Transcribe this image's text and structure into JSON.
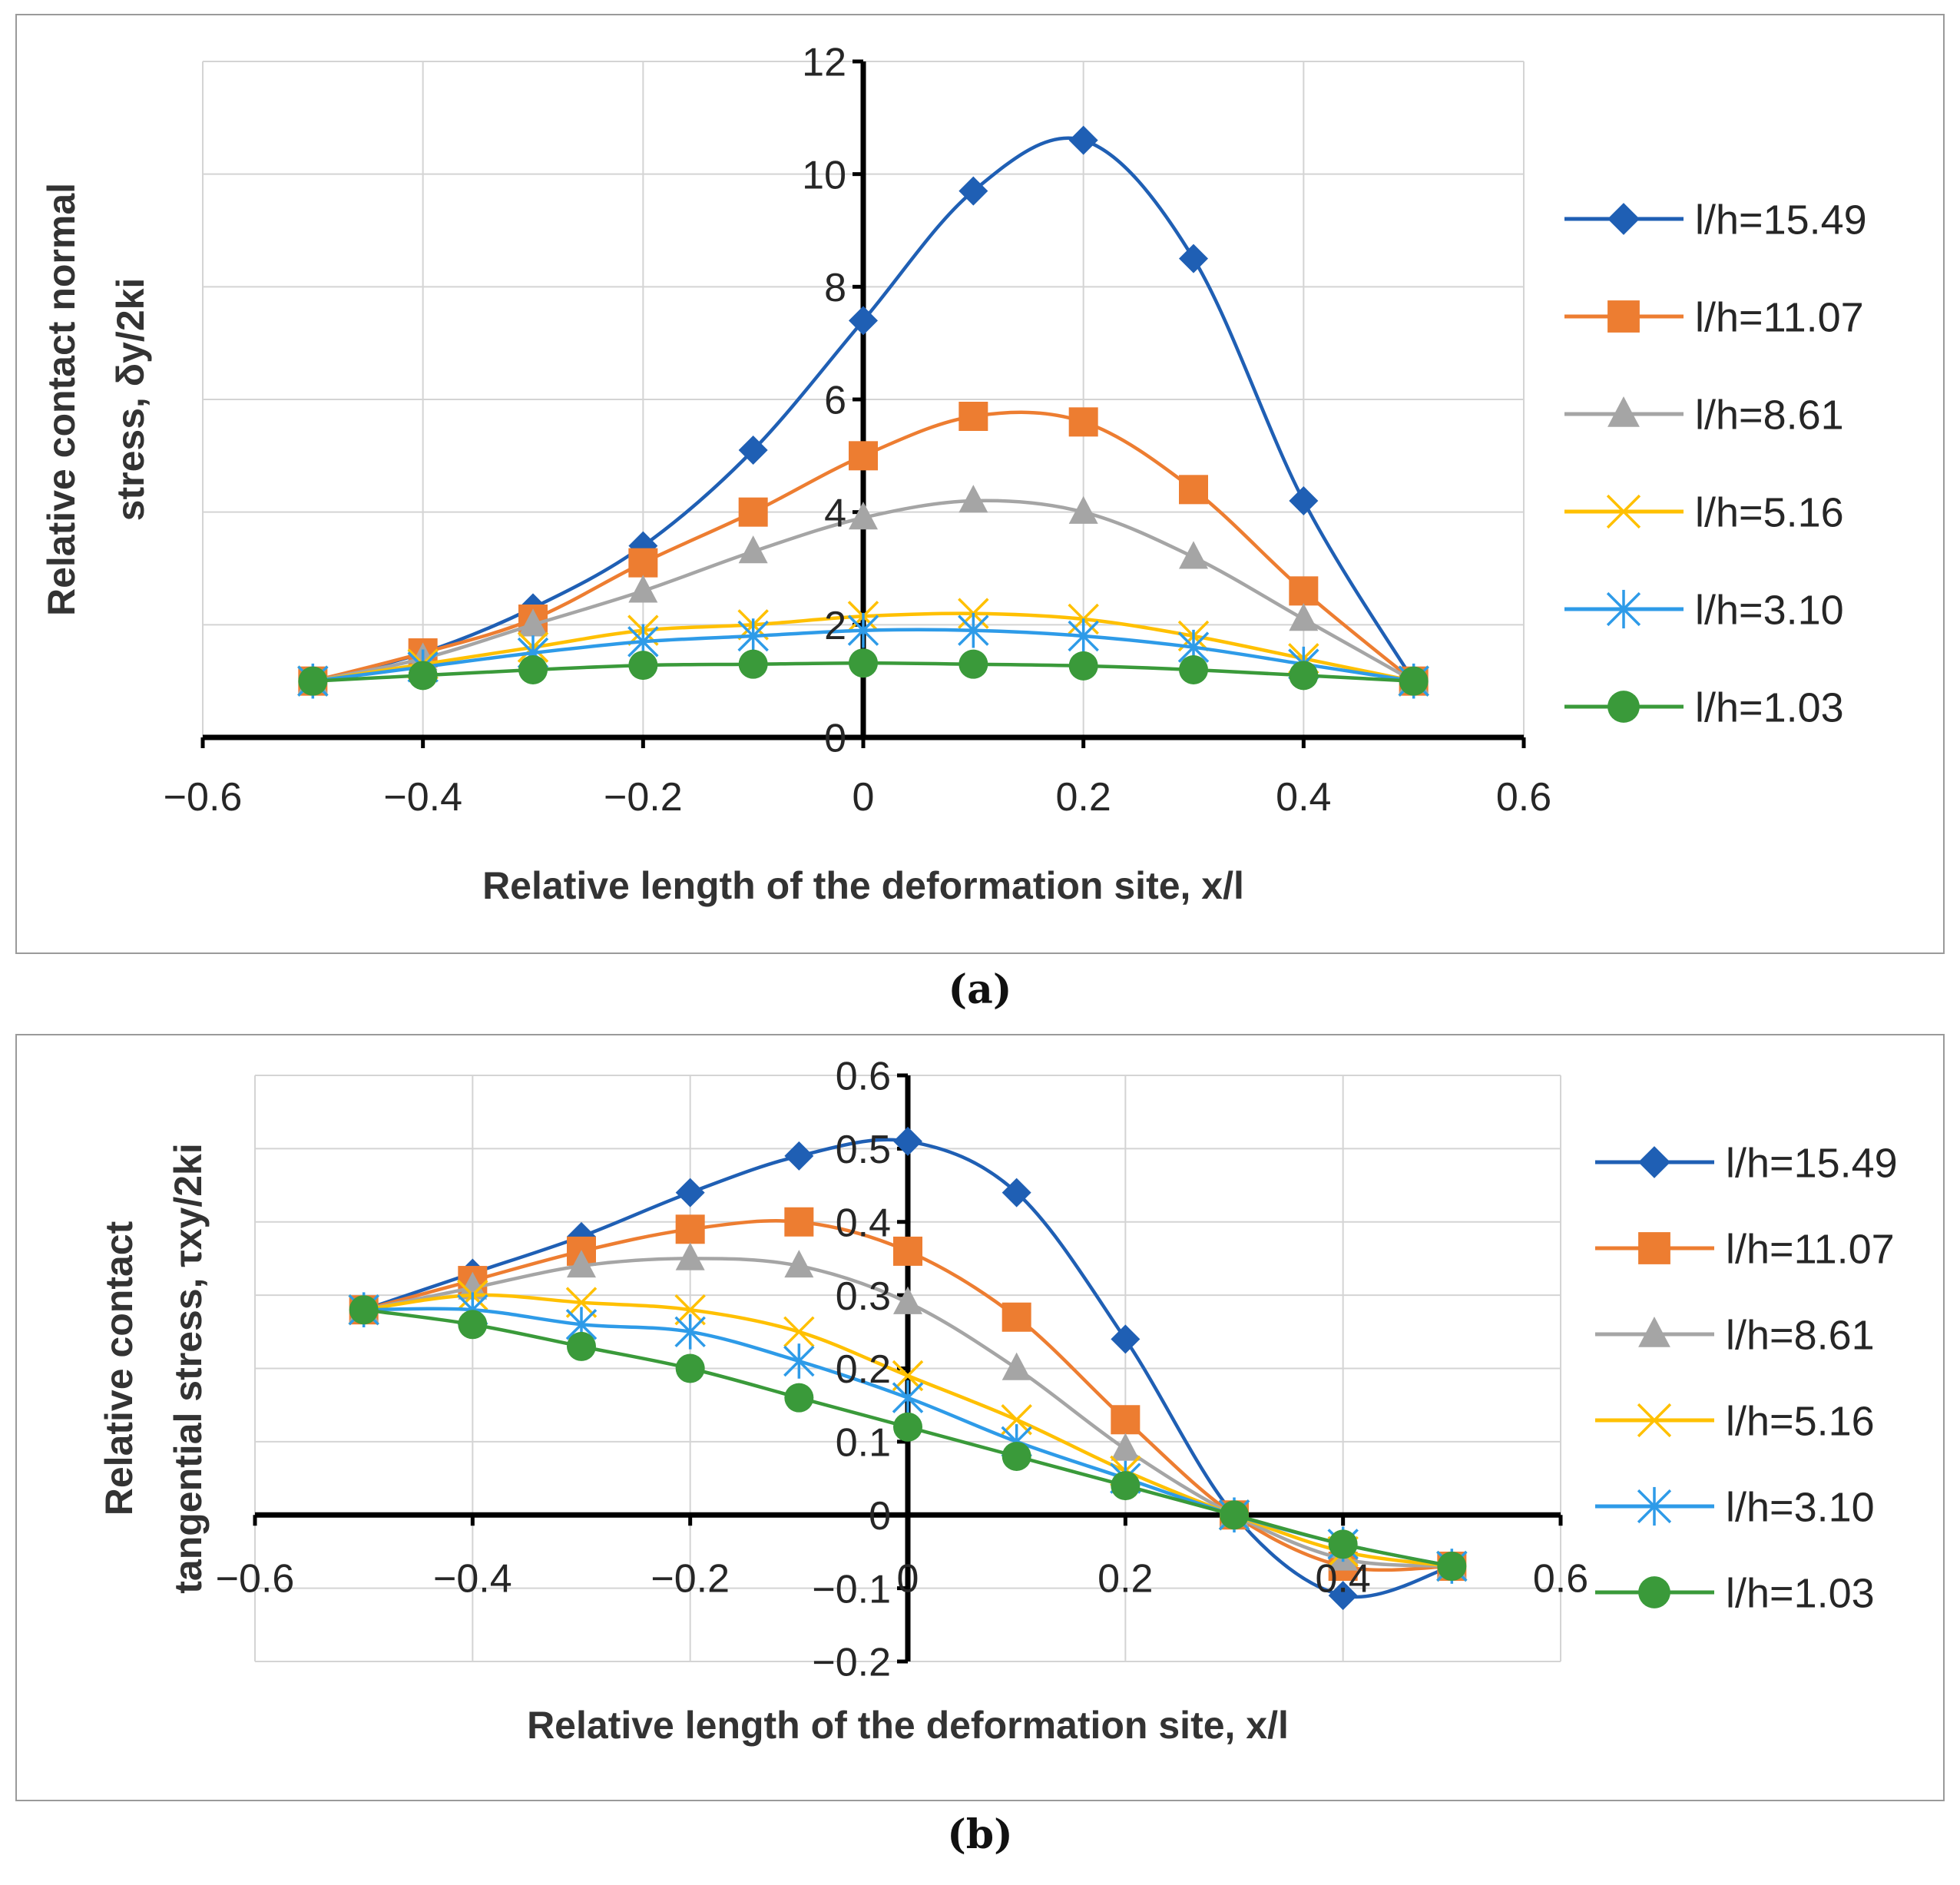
{
  "captions": [
    "(a)",
    "(b)"
  ],
  "chart_data": [
    {
      "type": "line",
      "title": "",
      "xlabel": "Relative length of the deformation site, x/l",
      "ylabel_lines": [
        "Relative contact normal",
        "stress, δy/2ki"
      ],
      "xlim": [
        -0.6,
        0.6
      ],
      "ylim": [
        0,
        12
      ],
      "x_ticks": [
        -0.6,
        -0.4,
        -0.2,
        0,
        0.2,
        0.4,
        0.6
      ],
      "x_tick_labels": [
        "−0.6",
        "−0.4",
        "−0.2",
        "0",
        "0.2",
        "0.4",
        "0.6"
      ],
      "y_ticks": [
        0,
        2,
        4,
        6,
        8,
        10,
        12
      ],
      "y_tick_labels": [
        "0",
        "2",
        "4",
        "6",
        "8",
        "10",
        "12"
      ],
      "grid": true,
      "legend": "right",
      "x": [
        -0.5,
        -0.4,
        -0.3,
        -0.2,
        -0.1,
        0,
        0.1,
        0.2,
        0.3,
        0.4,
        0.5
      ],
      "series": [
        {
          "name": "l/h=15.49",
          "color": "#1f5fb4",
          "marker": "diamond",
          "values": [
            1.0,
            1.5,
            2.3,
            3.4,
            5.1,
            7.4,
            9.7,
            10.6,
            8.5,
            4.2,
            1.0
          ]
        },
        {
          "name": "l/h=11.07",
          "color": "#ed7d31",
          "marker": "square",
          "values": [
            1.0,
            1.5,
            2.1,
            3.1,
            4.0,
            5.0,
            5.7,
            5.6,
            4.4,
            2.6,
            1.0
          ]
        },
        {
          "name": "l/h=8.61",
          "color": "#a5a5a5",
          "marker": "triangle",
          "values": [
            1.0,
            1.4,
            2.0,
            2.6,
            3.3,
            3.9,
            4.2,
            4.0,
            3.2,
            2.1,
            1.0
          ]
        },
        {
          "name": "l/h=5.16",
          "color": "#ffc000",
          "marker": "x",
          "values": [
            1.0,
            1.3,
            1.6,
            1.9,
            2.0,
            2.15,
            2.2,
            2.1,
            1.8,
            1.4,
            1.0
          ]
        },
        {
          "name": "l/h=3.10",
          "color": "#2e9be8",
          "marker": "star",
          "values": [
            1.0,
            1.25,
            1.5,
            1.7,
            1.8,
            1.9,
            1.9,
            1.8,
            1.6,
            1.3,
            1.0
          ]
        },
        {
          "name": "l/h=1.03",
          "color": "#3a9a3a",
          "marker": "circle",
          "values": [
            1.0,
            1.1,
            1.2,
            1.28,
            1.3,
            1.32,
            1.3,
            1.27,
            1.2,
            1.1,
            1.0
          ]
        }
      ]
    },
    {
      "type": "line",
      "title": "",
      "xlabel": "Relative length of the deformation site, x/l",
      "ylabel_lines": [
        "Relative contact",
        "tangential stress, τxy/2ki"
      ],
      "xlim": [
        -0.6,
        0.6
      ],
      "ylim": [
        -0.2,
        0.6
      ],
      "x_ticks": [
        -0.6,
        -0.4,
        -0.2,
        0,
        0.2,
        0.4,
        0.6
      ],
      "x_tick_labels": [
        "−0.6",
        "−0.4",
        "−0.2",
        "0",
        "0.2",
        "0.4",
        "0.6"
      ],
      "y_ticks": [
        -0.2,
        -0.1,
        0,
        0.1,
        0.2,
        0.3,
        0.4,
        0.5,
        0.6
      ],
      "y_tick_labels": [
        "−0.2",
        "−0.1",
        "0",
        "0.1",
        "0.2",
        "0.3",
        "0.4",
        "0.5",
        "0.6"
      ],
      "grid": true,
      "legend": "right",
      "x": [
        -0.5,
        -0.4,
        -0.3,
        -0.2,
        -0.1,
        0,
        0.1,
        0.2,
        0.3,
        0.4,
        0.5
      ],
      "series": [
        {
          "name": "l/h=15.49",
          "color": "#1f5fb4",
          "marker": "diamond",
          "values": [
            0.28,
            0.33,
            0.38,
            0.44,
            0.49,
            0.51,
            0.44,
            0.24,
            0.0,
            -0.11,
            -0.07
          ]
        },
        {
          "name": "l/h=11.07",
          "color": "#ed7d31",
          "marker": "square",
          "values": [
            0.28,
            0.32,
            0.36,
            0.39,
            0.4,
            0.36,
            0.27,
            0.13,
            0.0,
            -0.07,
            -0.07
          ]
        },
        {
          "name": "l/h=8.61",
          "color": "#a5a5a5",
          "marker": "triangle",
          "values": [
            0.28,
            0.31,
            0.34,
            0.35,
            0.34,
            0.29,
            0.2,
            0.09,
            0.0,
            -0.06,
            -0.07
          ]
        },
        {
          "name": "l/h=5.16",
          "color": "#ffc000",
          "marker": "x",
          "values": [
            0.28,
            0.3,
            0.29,
            0.28,
            0.25,
            0.19,
            0.13,
            0.06,
            0.0,
            -0.05,
            -0.07
          ]
        },
        {
          "name": "l/h=3.10",
          "color": "#2e9be8",
          "marker": "star",
          "values": [
            0.28,
            0.28,
            0.26,
            0.25,
            0.21,
            0.16,
            0.1,
            0.05,
            0.0,
            -0.04,
            -0.07
          ]
        },
        {
          "name": "l/h=1.03",
          "color": "#3a9a3a",
          "marker": "circle",
          "values": [
            0.28,
            0.26,
            0.23,
            0.2,
            0.16,
            0.12,
            0.08,
            0.04,
            0.0,
            -0.04,
            -0.07
          ]
        }
      ]
    }
  ]
}
